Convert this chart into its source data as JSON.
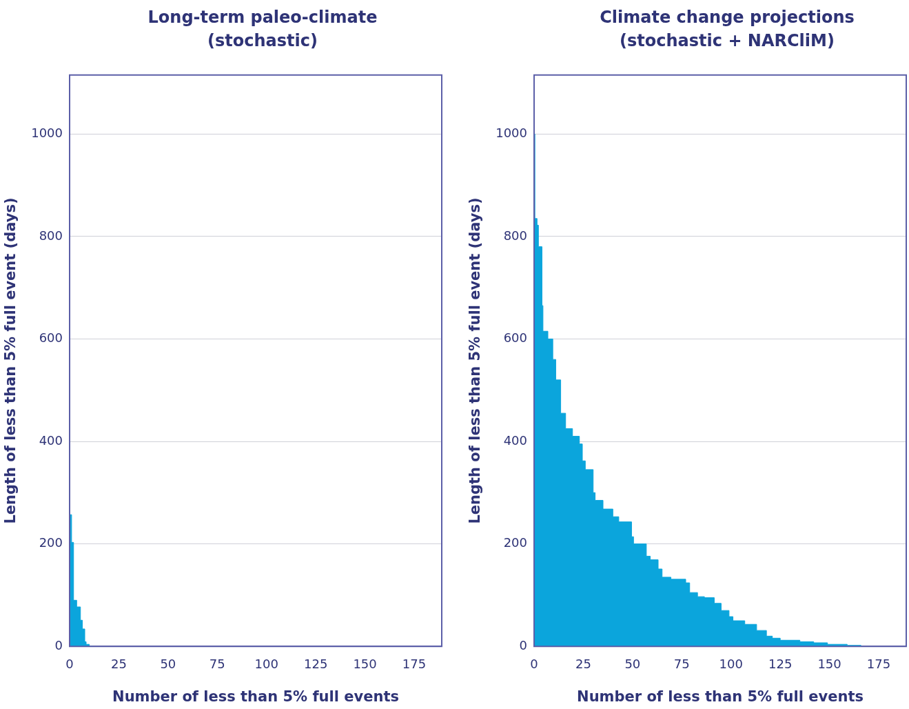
{
  "chart_data": [
    {
      "type": "area",
      "title": "Long-term paleo-climate (stochastic)",
      "xlabel": "Number of less than 5% full events",
      "ylabel": "Length of less than 5% full event (days)",
      "series": [
        {
          "color": "#0ba5dc",
          "x": [
            0,
            1,
            2,
            3.6,
            5.5,
            6.5,
            7.7,
            8.4,
            10,
            12
          ],
          "values": [
            389,
            257,
            203,
            90,
            77,
            51,
            34,
            9,
            4,
            0
          ]
        }
      ],
      "xlim": [
        0,
        189
      ],
      "xticks": [
        0,
        25,
        50,
        75,
        100,
        125,
        150,
        175
      ],
      "ylim": [
        0,
        1115
      ],
      "yticks": [
        0,
        200,
        400,
        600,
        800,
        1000
      ],
      "grid": "y"
    },
    {
      "type": "area",
      "title": "Climate change projections (stochastic + NARCliM)",
      "xlabel": "Number of less than 5% full events",
      "ylabel": "Length of less than 5% full event (days)",
      "series": [
        {
          "color": "#0ba5dc",
          "x": [
            0,
            0.4,
            1.5,
            2.2,
            4,
            4.5,
            7,
            9.5,
            11,
            13.5,
            16,
            19.5,
            23,
            24.5,
            26,
            30,
            31,
            35,
            40,
            43,
            49.5,
            50.5,
            57,
            59,
            63,
            65,
            69.5,
            77,
            79,
            83,
            86.5,
            91.5,
            95,
            99,
            101,
            107,
            113,
            118,
            121,
            125,
            135,
            142,
            149,
            159,
            166,
            167
          ],
          "values": [
            1070,
            1000,
            835,
            822,
            780,
            665,
            615,
            600,
            560,
            520,
            455,
            425,
            410,
            395,
            362,
            345,
            300,
            285,
            268,
            253,
            243,
            214,
            200,
            176,
            169,
            151,
            135,
            131,
            124,
            105,
            97,
            95,
            84,
            70,
            58,
            50,
            43,
            31,
            20,
            16,
            12,
            9,
            7,
            4,
            2,
            0
          ]
        }
      ],
      "xlim": [
        0,
        189
      ],
      "xticks": [
        0,
        25,
        50,
        75,
        100,
        125,
        150,
        175
      ],
      "ylim": [
        0,
        1115
      ],
      "yticks": [
        0,
        200,
        400,
        600,
        800,
        1000
      ],
      "grid": "y"
    }
  ]
}
